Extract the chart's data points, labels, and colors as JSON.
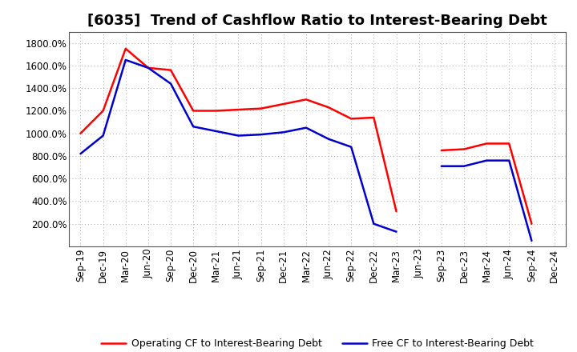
{
  "title": "[6035]  Trend of Cashflow Ratio to Interest-Bearing Debt",
  "x_labels": [
    "Sep-19",
    "Dec-19",
    "Mar-20",
    "Jun-20",
    "Sep-20",
    "Dec-20",
    "Mar-21",
    "Jun-21",
    "Sep-21",
    "Dec-21",
    "Mar-22",
    "Jun-22",
    "Sep-22",
    "Dec-22",
    "Mar-23",
    "Jun-23",
    "Sep-23",
    "Dec-23",
    "Mar-24",
    "Jun-24",
    "Sep-24",
    "Dec-24"
  ],
  "operating_cf": [
    1000,
    1200,
    1750,
    1580,
    1560,
    1200,
    1200,
    1210,
    1220,
    1260,
    1300,
    1230,
    1130,
    1140,
    310,
    null,
    850,
    860,
    910,
    910,
    200,
    null
  ],
  "free_cf": [
    820,
    980,
    1650,
    1580,
    1440,
    1060,
    1020,
    980,
    990,
    1010,
    1050,
    950,
    880,
    200,
    130,
    null,
    710,
    710,
    760,
    760,
    50,
    null
  ],
  "operating_color": "#ff0000",
  "free_color": "#0000cc",
  "background_color": "#ffffff",
  "ylim_min": 0,
  "ylim_max": 1900,
  "ytick_values": [
    200,
    400,
    600,
    800,
    1000,
    1200,
    1400,
    1600,
    1800
  ],
  "legend_op": "Operating CF to Interest-Bearing Debt",
  "legend_free": "Free CF to Interest-Bearing Debt",
  "title_fontsize": 13,
  "axis_fontsize": 8.5
}
